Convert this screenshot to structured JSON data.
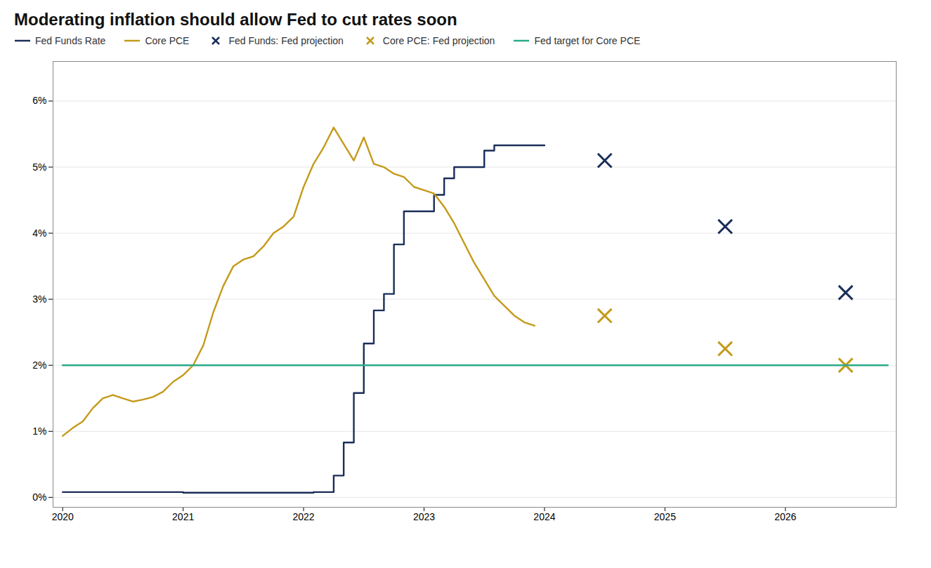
{
  "chart_data": {
    "type": "line",
    "title": "Moderating inflation should allow Fed to cut rates soon",
    "xlim": [
      2019.92,
      2026.92
    ],
    "xticks": [
      2020,
      2021,
      2022,
      2023,
      2024,
      2025,
      2026
    ],
    "ylim": [
      -0.15,
      6.6
    ],
    "yticks": [
      {
        "value": 0,
        "label": "0%"
      },
      {
        "value": 1,
        "label": "1%"
      },
      {
        "value": 2,
        "label": "2%"
      },
      {
        "value": 3,
        "label": "3%"
      },
      {
        "value": 4,
        "label": "4%"
      },
      {
        "value": 5,
        "label": "5%"
      },
      {
        "value": 6,
        "label": "6%"
      }
    ],
    "grid": "y",
    "legend": "upper left",
    "series": [
      {
        "name": "Fed Funds Rate",
        "type": "step",
        "color": "#1a2e5a",
        "x": [
          2020.0,
          2020.083,
          2020.167,
          2020.25,
          2020.333,
          2020.417,
          2020.5,
          2020.583,
          2020.667,
          2020.75,
          2020.833,
          2020.917,
          2021.0,
          2021.083,
          2021.167,
          2021.25,
          2021.333,
          2021.417,
          2021.5,
          2021.583,
          2021.667,
          2021.75,
          2021.833,
          2021.917,
          2022.0,
          2022.083,
          2022.167,
          2022.25,
          2022.333,
          2022.417,
          2022.5,
          2022.583,
          2022.667,
          2022.75,
          2022.833,
          2022.917,
          2023.0,
          2023.083,
          2023.167,
          2023.25,
          2023.333,
          2023.417,
          2023.5,
          2023.583,
          2023.667,
          2023.75,
          2023.833,
          2023.917,
          2024.0
        ],
        "values": [
          0.08,
          0.08,
          0.08,
          0.08,
          0.08,
          0.08,
          0.08,
          0.08,
          0.08,
          0.08,
          0.08,
          0.08,
          0.07,
          0.07,
          0.07,
          0.07,
          0.07,
          0.07,
          0.07,
          0.07,
          0.07,
          0.07,
          0.07,
          0.07,
          0.07,
          0.08,
          0.08,
          0.33,
          0.83,
          1.58,
          2.33,
          2.83,
          3.08,
          3.83,
          4.33,
          4.33,
          4.33,
          4.58,
          4.83,
          5.0,
          5.0,
          5.0,
          5.25,
          5.33,
          5.33,
          5.33,
          5.33,
          5.33,
          5.33
        ]
      },
      {
        "name": "Core PCE",
        "type": "line",
        "color": "#c49a1a",
        "x": [
          2020.0,
          2020.083,
          2020.167,
          2020.25,
          2020.333,
          2020.417,
          2020.5,
          2020.583,
          2020.667,
          2020.75,
          2020.833,
          2020.917,
          2021.0,
          2021.083,
          2021.167,
          2021.25,
          2021.333,
          2021.417,
          2021.5,
          2021.583,
          2021.667,
          2021.75,
          2021.833,
          2021.917,
          2022.0,
          2022.083,
          2022.167,
          2022.25,
          2022.333,
          2022.417,
          2022.5,
          2022.583,
          2022.667,
          2022.75,
          2022.833,
          2022.917,
          2023.0,
          2023.083,
          2023.167,
          2023.25,
          2023.333,
          2023.417,
          2023.5,
          2023.583,
          2023.667,
          2023.75,
          2023.833,
          2023.917
        ],
        "values": [
          0.93,
          1.05,
          1.15,
          1.35,
          1.5,
          1.55,
          1.5,
          1.45,
          1.48,
          1.52,
          1.6,
          1.75,
          1.85,
          2.0,
          2.3,
          2.8,
          3.2,
          3.5,
          3.6,
          3.65,
          3.8,
          4.0,
          4.1,
          4.25,
          4.7,
          5.05,
          5.3,
          5.6,
          5.35,
          5.1,
          5.45,
          5.05,
          5.0,
          4.9,
          4.85,
          4.7,
          4.65,
          4.6,
          4.4,
          4.15,
          3.85,
          3.55,
          3.3,
          3.05,
          2.9,
          2.75,
          2.65,
          2.6
        ]
      },
      {
        "name": "Fed Funds: Fed projection",
        "type": "scatter",
        "marker": "x",
        "color": "#1a2e5a",
        "x": [
          2024.5,
          2025.5,
          2026.5
        ],
        "values": [
          5.1,
          4.1,
          3.1
        ]
      },
      {
        "name": "Core PCE: Fed projection",
        "type": "scatter",
        "marker": "x",
        "color": "#c49a1a",
        "x": [
          2024.5,
          2025.5,
          2026.5
        ],
        "values": [
          2.75,
          2.25,
          2.0
        ]
      },
      {
        "name": "Fed target for Core PCE",
        "type": "line",
        "color": "#2aaa8a",
        "x": [
          2020.0,
          2026.85
        ],
        "values": [
          2.0,
          2.0
        ]
      }
    ]
  }
}
